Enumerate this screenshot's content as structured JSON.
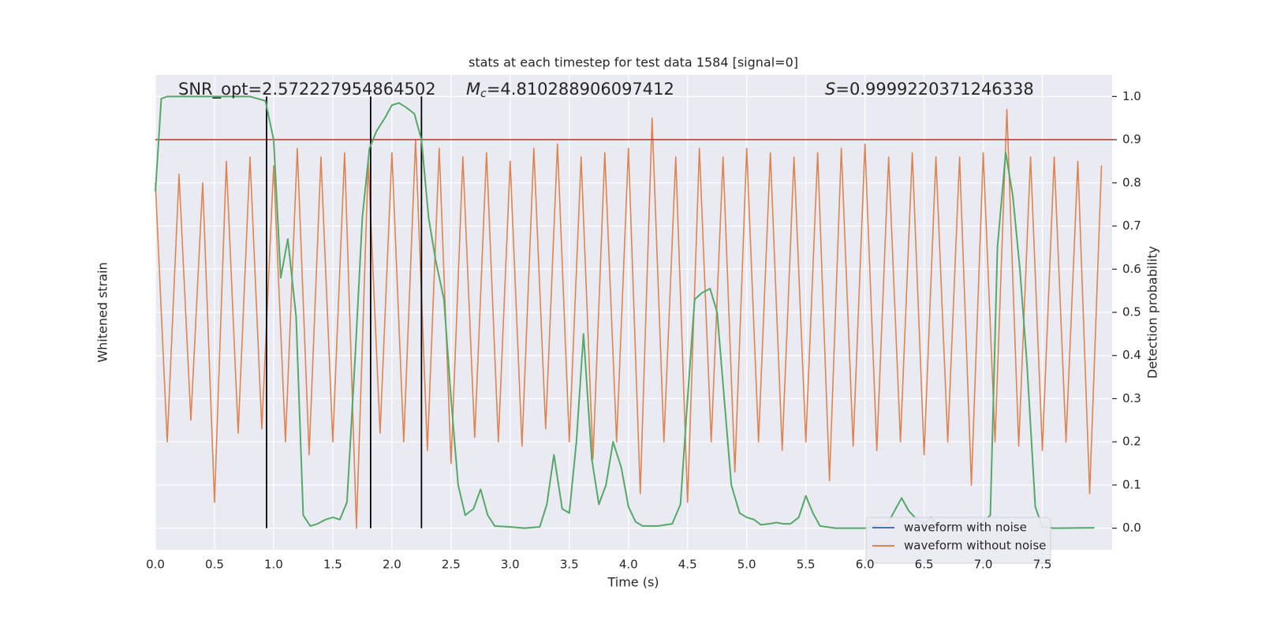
{
  "chart_data": {
    "type": "line",
    "title": "stats at each timestep for test data 1584 [signal=0]",
    "xlabel": "Time (s)",
    "ylabel": "Whitened strain",
    "y2label": "Detection probability",
    "annotations": [
      {
        "text": "SNR_opt=2.572227954864502"
      },
      {
        "symbol": "M",
        "subscript": "c",
        "text": "=4.810288906097412"
      },
      {
        "symbol": "S",
        "text": "=0.9999220371246338"
      }
    ],
    "xlim": [
      0,
      8.09
    ],
    "xticks": [
      {
        "value": 0,
        "label": "0.0"
      },
      0.5,
      {
        "value": 1,
        "label": "1.0"
      },
      1.5,
      {
        "value": 2,
        "label": "2.0"
      },
      2.5,
      {
        "value": 3,
        "label": "3.0"
      },
      3.5,
      {
        "value": 4,
        "label": "4.0"
      },
      4.5,
      {
        "value": 5,
        "label": "5.0"
      },
      5.5,
      {
        "value": 6,
        "label": "6.0"
      },
      6.5,
      {
        "value": 7,
        "label": "7.0"
      },
      7.5
    ],
    "ylim": [
      -0.05,
      1.05
    ],
    "y2lim": [
      -0.05,
      1.05
    ],
    "y2ticks": [
      {
        "value": 0,
        "label": "0.0"
      },
      0.1,
      0.2,
      0.3,
      0.4,
      0.5,
      0.6,
      0.7,
      0.8,
      0.9,
      {
        "value": 1,
        "label": "1.0"
      }
    ],
    "grid": true,
    "legend": "lower right",
    "threshold": 0.9,
    "threshold_color": "#c03d3e",
    "vlines": [
      0.94,
      1.82,
      2.25
    ],
    "vline_range": [
      0,
      1
    ],
    "vline_color": "#000000",
    "series": [
      {
        "name": "waveform with noise",
        "color": "#4c72b0"
      },
      {
        "name": "waveform without noise",
        "color": "#dd8452",
        "x": [
          0,
          0.1,
          0.2,
          0.3,
          0.4,
          0.5,
          0.6,
          0.7,
          0.8,
          0.9,
          1,
          1.1,
          1.2,
          1.3,
          1.4,
          1.5,
          1.6,
          1.7,
          1.8,
          1.9,
          2,
          2.1,
          2.2,
          2.3,
          2.4,
          2.5,
          2.6,
          2.7,
          2.8,
          2.9,
          3,
          3.1,
          3.2,
          3.3,
          3.4,
          3.5,
          3.6,
          3.7,
          3.8,
          3.9,
          4,
          4.1,
          4.2,
          4.3,
          4.4,
          4.5,
          4.6,
          4.7,
          4.8,
          4.9,
          5,
          5.1,
          5.2,
          5.3,
          5.4,
          5.5,
          5.6,
          5.7,
          5.8,
          5.9,
          6,
          6.1,
          6.2,
          6.3,
          6.4,
          6.5,
          6.6,
          6.7,
          6.8,
          6.9,
          7,
          7.1,
          7.2,
          7.3,
          7.4,
          7.5,
          7.6,
          7.7,
          7.8,
          7.9,
          8
        ],
        "values": [
          0.8,
          0.2,
          0.82,
          0.25,
          0.8,
          0.06,
          0.85,
          0.22,
          0.86,
          0.23,
          0.84,
          0.2,
          0.88,
          0.17,
          0.86,
          0.2,
          0.87,
          0.0,
          0.85,
          0.22,
          0.87,
          0.2,
          0.9,
          0.18,
          0.88,
          0.15,
          0.86,
          0.21,
          0.87,
          0.2,
          0.85,
          0.19,
          0.88,
          0.23,
          0.89,
          0.2,
          0.86,
          0.16,
          0.87,
          0.2,
          0.88,
          0.08,
          0.95,
          0.2,
          0.86,
          0.06,
          0.88,
          0.2,
          0.86,
          0.13,
          0.88,
          0.2,
          0.87,
          0.18,
          0.86,
          0.2,
          0.87,
          0.11,
          0.88,
          0.19,
          0.89,
          0.18,
          0.86,
          0.2,
          0.87,
          0.17,
          0.86,
          0.2,
          0.86,
          0.1,
          0.87,
          0.2,
          0.97,
          0.19,
          0.86,
          0.18,
          0.86,
          0.2,
          0.85,
          0.08,
          0.84
        ]
      },
      {
        "color": "#55a868",
        "axis": "y2",
        "x": [
          0,
          0.05,
          0.1,
          0.2,
          0.4,
          0.6,
          0.8,
          0.93,
          1.0,
          1.06,
          1.12,
          1.19,
          1.25,
          1.31,
          1.37,
          1.44,
          1.5,
          1.56,
          1.62,
          1.69,
          1.75,
          1.81,
          1.87,
          1.94,
          2.0,
          2.06,
          2.12,
          2.19,
          2.25,
          2.31,
          2.37,
          2.44,
          2.5,
          2.56,
          2.62,
          2.69,
          2.75,
          2.81,
          2.87,
          3.0,
          3.12,
          3.25,
          3.31,
          3.37,
          3.44,
          3.5,
          3.56,
          3.62,
          3.69,
          3.75,
          3.81,
          3.87,
          3.94,
          4.0,
          4.06,
          4.12,
          4.25,
          4.37,
          4.44,
          4.5,
          4.56,
          4.62,
          4.69,
          4.75,
          4.81,
          4.87,
          4.94,
          5.0,
          5.06,
          5.12,
          5.19,
          5.25,
          5.31,
          5.37,
          5.44,
          5.5,
          5.56,
          5.62,
          5.75,
          6.0,
          6.19,
          6.25,
          6.31,
          6.37,
          6.44,
          6.5,
          6.56,
          6.62,
          6.75,
          6.94,
          7.06,
          7.12,
          7.19,
          7.25,
          7.31,
          7.37,
          7.44,
          7.5,
          7.6,
          7.94
        ],
        "values": [
          0.78,
          0.995,
          1.0,
          1.0,
          1.0,
          1.0,
          1.0,
          0.99,
          0.9,
          0.58,
          0.67,
          0.49,
          0.03,
          0.005,
          0.01,
          0.02,
          0.025,
          0.02,
          0.06,
          0.4,
          0.72,
          0.88,
          0.92,
          0.95,
          0.98,
          0.985,
          0.975,
          0.96,
          0.9,
          0.72,
          0.62,
          0.53,
          0.3,
          0.1,
          0.03,
          0.045,
          0.09,
          0.03,
          0.005,
          0.003,
          0.0,
          0.003,
          0.055,
          0.17,
          0.045,
          0.035,
          0.2,
          0.45,
          0.16,
          0.055,
          0.1,
          0.2,
          0.14,
          0.05,
          0.015,
          0.005,
          0.005,
          0.01,
          0.055,
          0.3,
          0.53,
          0.545,
          0.555,
          0.5,
          0.3,
          0.1,
          0.035,
          0.025,
          0.02,
          0.008,
          0.01,
          0.013,
          0.01,
          0.01,
          0.025,
          0.075,
          0.035,
          0.005,
          0.0,
          0.0,
          0.01,
          0.04,
          0.07,
          0.04,
          0.02,
          0.01,
          0.025,
          0.005,
          0.0,
          0.0,
          0.03,
          0.65,
          0.87,
          0.77,
          0.6,
          0.38,
          0.05,
          0.002,
          0.0,
          0.001
        ]
      }
    ]
  }
}
